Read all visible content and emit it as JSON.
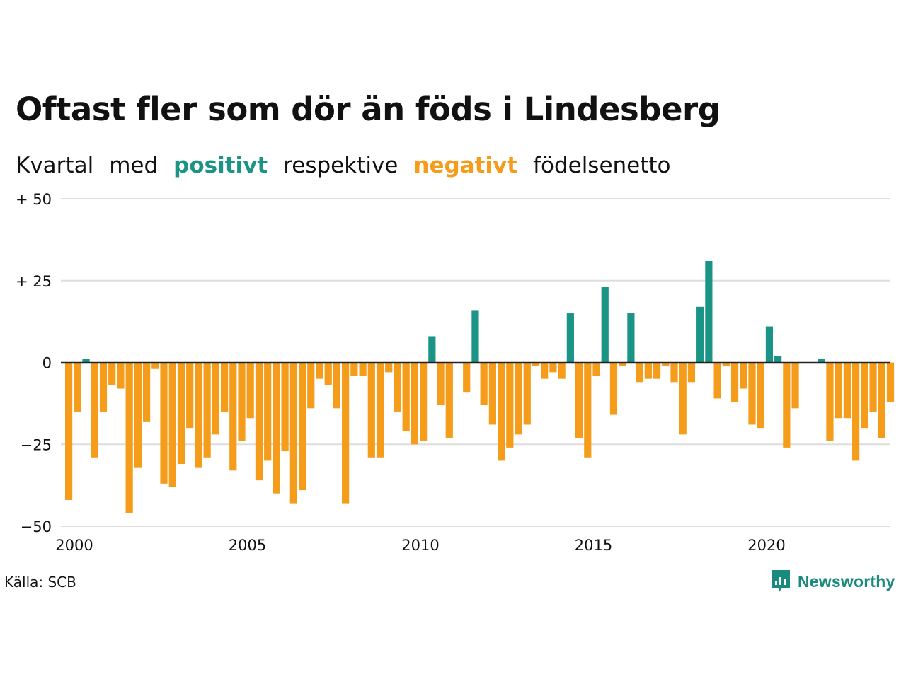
{
  "title": "Oftast fler som dör än föds i Lindesberg",
  "subtitle": {
    "part1": "Kvartal",
    "part2": "med",
    "positive": "positivt",
    "part3": "respektive",
    "negative": "negativt",
    "part4": "födelsenetto"
  },
  "source": "Källa: SCB",
  "logo_text": "Newsworthy",
  "colors": {
    "positive": "#1a9485",
    "negative": "#f59c1a",
    "grid": "#dddddd",
    "zero_line": "#222222"
  },
  "chart_data": {
    "type": "bar",
    "title": "Oftast fler som dör än föds i Lindesberg",
    "subtitle": "Kvartal med positivt respektive negativt födelsenetto",
    "xlabel": "",
    "ylabel": "",
    "ylim": [
      -50,
      50
    ],
    "y_ticks": [
      {
        "value": 50,
        "label": "+ 50"
      },
      {
        "value": 25,
        "label": "+ 25"
      },
      {
        "value": 0,
        "label": "0"
      },
      {
        "value": -25,
        "label": "−25"
      },
      {
        "value": -50,
        "label": "−50"
      }
    ],
    "x_ticks": [
      "2000",
      "2005",
      "2010",
      "2015",
      "2020"
    ],
    "x_range": [
      "2000 Q1",
      "2023 Q4"
    ],
    "grid": true,
    "categories": [
      "2000 Q1",
      "2000 Q2",
      "2000 Q3",
      "2000 Q4",
      "2001 Q1",
      "2001 Q2",
      "2001 Q3",
      "2001 Q4",
      "2002 Q1",
      "2002 Q2",
      "2002 Q3",
      "2002 Q4",
      "2003 Q1",
      "2003 Q2",
      "2003 Q3",
      "2003 Q4",
      "2004 Q1",
      "2004 Q2",
      "2004 Q3",
      "2004 Q4",
      "2005 Q1",
      "2005 Q2",
      "2005 Q3",
      "2005 Q4",
      "2006 Q1",
      "2006 Q2",
      "2006 Q3",
      "2006 Q4",
      "2007 Q1",
      "2007 Q2",
      "2007 Q3",
      "2007 Q4",
      "2008 Q1",
      "2008 Q2",
      "2008 Q3",
      "2008 Q4",
      "2009 Q1",
      "2009 Q2",
      "2009 Q3",
      "2009 Q4",
      "2010 Q1",
      "2010 Q2",
      "2010 Q3",
      "2010 Q4",
      "2011 Q1",
      "2011 Q2",
      "2011 Q3",
      "2011 Q4",
      "2012 Q1",
      "2012 Q2",
      "2012 Q3",
      "2012 Q4",
      "2013 Q1",
      "2013 Q2",
      "2013 Q3",
      "2013 Q4",
      "2014 Q1",
      "2014 Q2",
      "2014 Q3",
      "2014 Q4",
      "2015 Q1",
      "2015 Q2",
      "2015 Q3",
      "2015 Q4",
      "2016 Q1",
      "2016 Q2",
      "2016 Q3",
      "2016 Q4",
      "2017 Q1",
      "2017 Q2",
      "2017 Q3",
      "2017 Q4",
      "2018 Q1",
      "2018 Q2",
      "2018 Q3",
      "2018 Q4",
      "2019 Q1",
      "2019 Q2",
      "2019 Q3",
      "2019 Q4",
      "2020 Q1",
      "2020 Q2",
      "2020 Q3",
      "2020 Q4",
      "2021 Q1",
      "2021 Q2",
      "2021 Q3",
      "2021 Q4",
      "2022 Q1",
      "2022 Q2",
      "2022 Q3",
      "2022 Q4",
      "2023 Q1",
      "2023 Q2",
      "2023 Q3",
      "2023 Q4"
    ],
    "values": [
      -42,
      -15,
      1,
      -29,
      -15,
      -7,
      -8,
      -46,
      -32,
      -18,
      -2,
      -37,
      -38,
      -31,
      -20,
      -32,
      -29,
      -22,
      -15,
      -33,
      -24,
      -17,
      -36,
      -30,
      -40,
      -27,
      -43,
      -39,
      -14,
      -5,
      -7,
      -14,
      -43,
      -4,
      -4,
      -29,
      -29,
      -3,
      -15,
      -21,
      -25,
      -24,
      8,
      -13,
      -23,
      0,
      -9,
      16,
      -13,
      -19,
      -30,
      -26,
      -22,
      -19,
      -1,
      -5,
      -3,
      -5,
      15,
      -23,
      -29,
      -4,
      23,
      -16,
      -1,
      15,
      -6,
      -5,
      -5,
      -1,
      -6,
      -22,
      -6,
      17,
      31,
      -11,
      -1,
      -12,
      -8,
      -19,
      -20,
      11,
      2,
      -26,
      -14,
      0,
      0,
      1,
      -24,
      -17,
      -17,
      -30,
      -20,
      -15,
      -23,
      -12
    ]
  }
}
